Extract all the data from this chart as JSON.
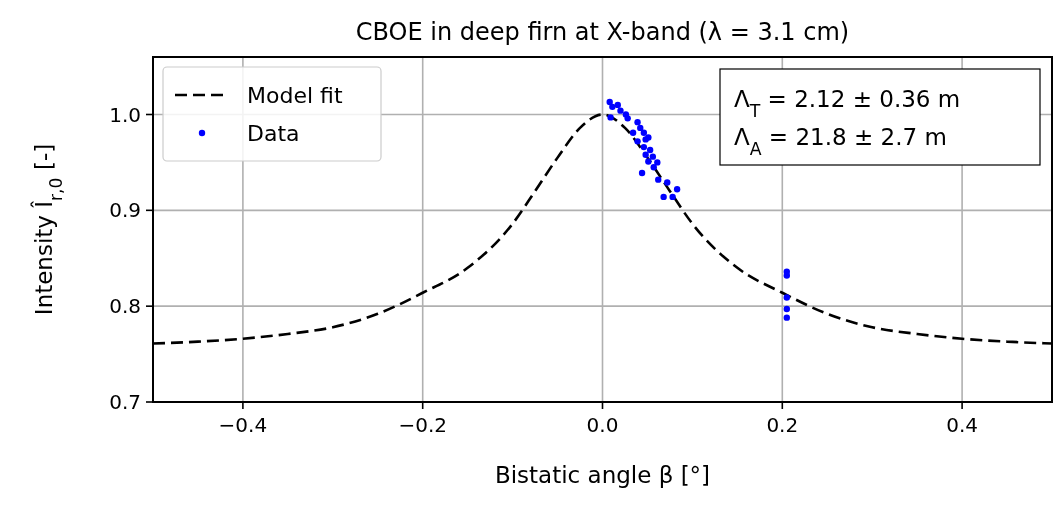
{
  "chart_data": {
    "type": "scatter",
    "title": "CBOE in deep firn at X-band (λ = 3.1 cm)",
    "xlabel": "Bistatic angle β [°]",
    "ylabel": "Intensity Î$_{r,0}$ [-]",
    "xlim": [
      -0.5,
      0.5
    ],
    "ylim": [
      0.7,
      1.06
    ],
    "xticks": [
      {
        "value": -0.4,
        "label": "−0.4"
      },
      {
        "value": -0.2,
        "label": "−0.2"
      },
      {
        "value": 0,
        "label": "0.0"
      },
      {
        "value": 0.2,
        "label": "0.2"
      },
      {
        "value": 0.4,
        "label": "0.4"
      }
    ],
    "yticks": [
      {
        "value": 0.7,
        "label": "0.7"
      },
      {
        "value": 0.8,
        "label": "0.8"
      },
      {
        "value": 0.9,
        "label": "0.9"
      },
      {
        "value": 1.0,
        "label": "1.0"
      }
    ],
    "grid": true,
    "legend": "top left",
    "annotations": [
      "Λ$_{T}$ = 2.12 ± 0.36 m",
      "Λ$_{A}$ = 21.8 ± 2.7 m"
    ],
    "series": [
      {
        "name": "Model fit",
        "type": "line",
        "color": "#000000",
        "line_style": "dashed",
        "marker": "none",
        "x": [
          -0.5,
          -0.45,
          -0.4,
          -0.35,
          -0.3,
          -0.25,
          -0.2,
          -0.15,
          -0.1,
          -0.075,
          -0.05,
          -0.025,
          0,
          0.025,
          0.05,
          0.075,
          0.1,
          0.15,
          0.2,
          0.25,
          0.3,
          0.35,
          0.4,
          0.45,
          0.5
        ],
        "values": [
          0.761,
          0.763,
          0.766,
          0.771,
          0.778,
          0.792,
          0.814,
          0.84,
          0.886,
          0.92,
          0.955,
          0.986,
          1.0,
          0.986,
          0.955,
          0.92,
          0.886,
          0.84,
          0.814,
          0.792,
          0.778,
          0.771,
          0.766,
          0.763,
          0.761
        ]
      },
      {
        "name": "Data",
        "color": "#0000ff",
        "marker": "circle",
        "x": [
          0.008,
          0.017,
          0.011,
          0.02,
          0.009,
          0.028,
          0.039,
          0.042,
          0.034,
          0.046,
          0.039,
          0.051,
          0.046,
          0.048,
          0.056,
          0.051,
          0.061,
          0.057,
          0.044,
          0.062,
          0.072,
          0.083,
          0.068,
          0.078,
          0.026,
          0.048,
          0.053,
          0.205,
          0.205,
          0.205,
          0.205,
          0.205
        ],
        "values": [
          1.013,
          1.01,
          1.008,
          1.004,
          0.997,
          0.996,
          0.992,
          0.986,
          0.981,
          0.981,
          0.972,
          0.976,
          0.966,
          0.958,
          0.956,
          0.951,
          0.95,
          0.945,
          0.939,
          0.932,
          0.929,
          0.922,
          0.914,
          0.914,
          1.0,
          0.974,
          0.963,
          0.836,
          0.832,
          0.809,
          0.797,
          0.788
        ]
      }
    ]
  }
}
